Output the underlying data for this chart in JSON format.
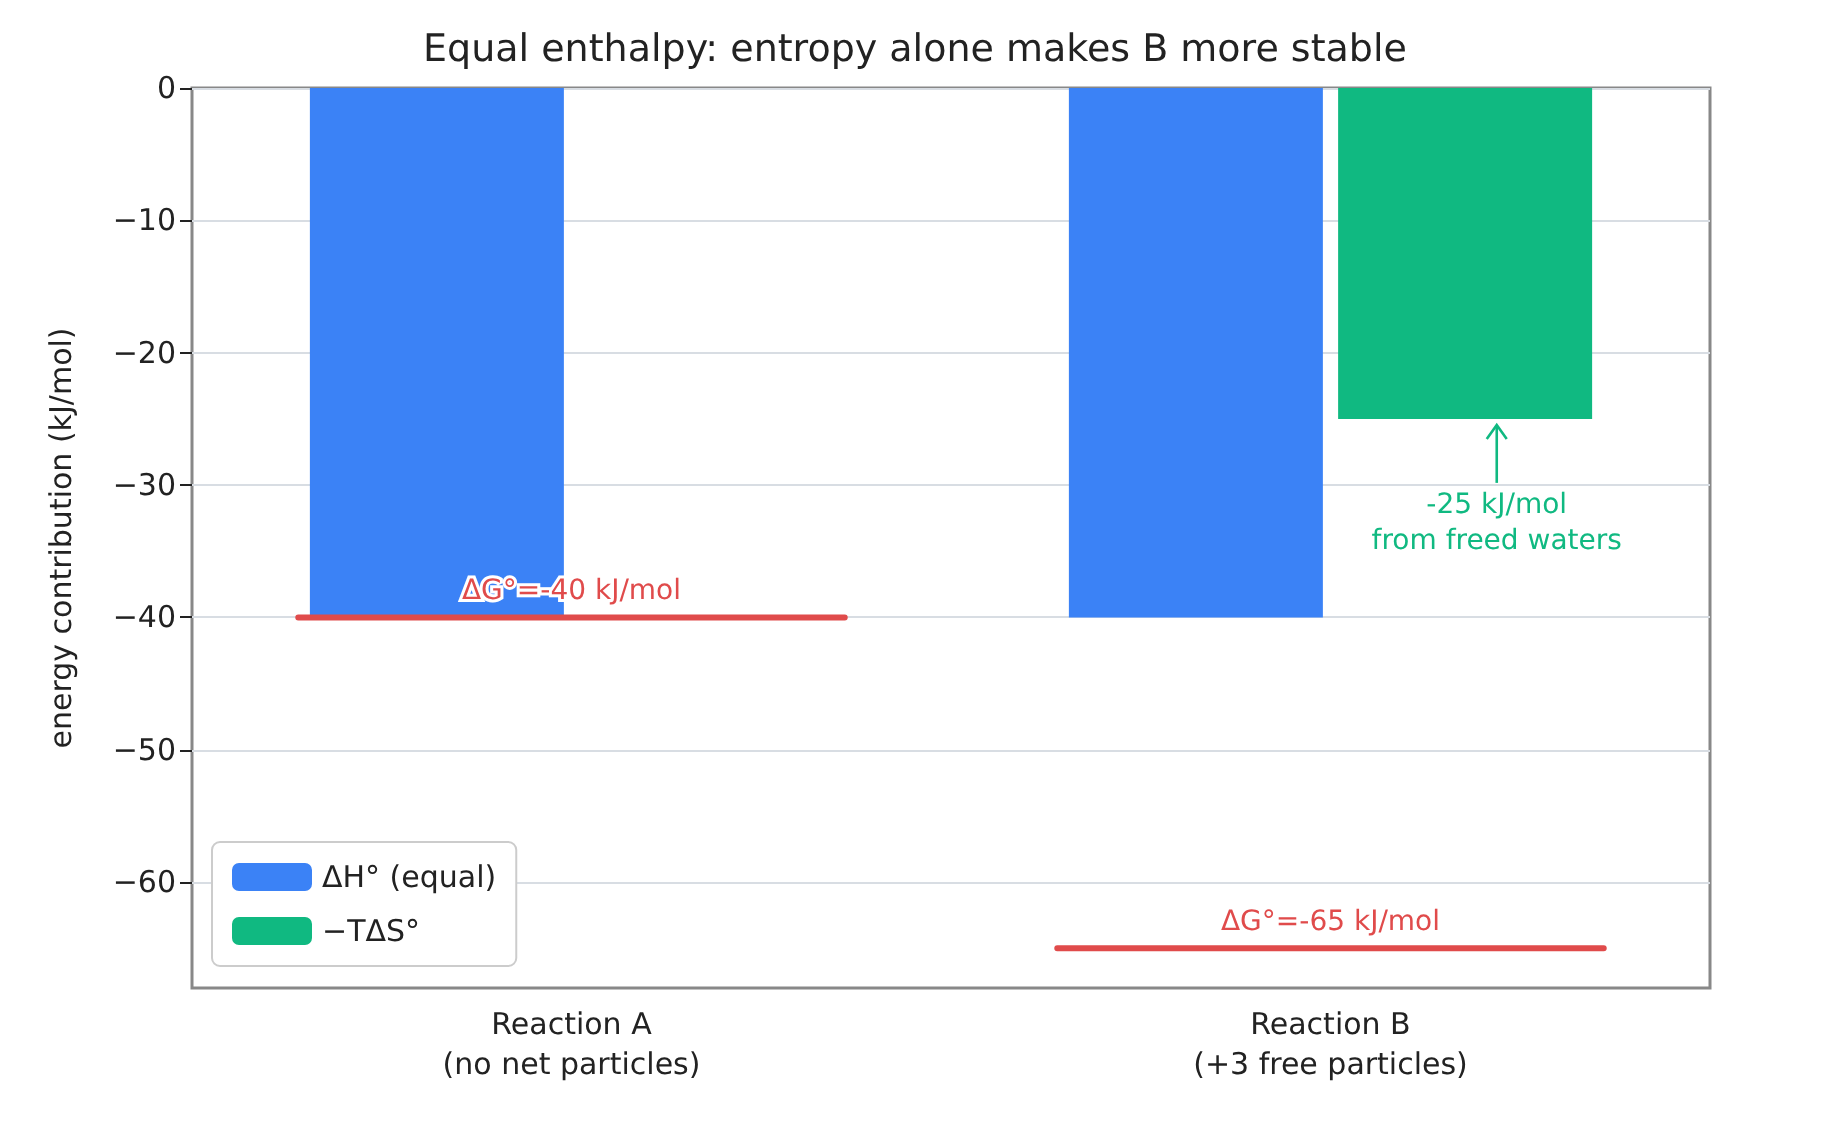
{
  "chart_data": {
    "type": "bar",
    "title": "Equal enthalpy: entropy alone makes B more stable",
    "ylabel": "energy contribution (kJ/mol)",
    "categories": [
      "Reaction A\n(no net particles)",
      "Reaction B\n(+3 free particles)"
    ],
    "series": [
      {
        "name": "ΔH° (equal)",
        "color": "#3b82f6",
        "values": [
          -40,
          -40
        ]
      },
      {
        "name": "−TΔS°",
        "color": "#10b981",
        "values": [
          0,
          -25
        ]
      }
    ],
    "ref_lines": [
      {
        "axis": "y",
        "value": -40,
        "label": "ΔG°=-40 kJ/mol",
        "color": "#e04b4b"
      },
      {
        "axis": "y",
        "value": -65,
        "label": "ΔG°=-65 kJ/mol",
        "color": "#e04b4b"
      }
    ],
    "annotations": [
      {
        "text": "-25 kJ/mol\nfrom freed waters",
        "x": "Reaction B\n(+3 free particles)",
        "y": -25
      }
    ],
    "ylim": [
      -68,
      0
    ],
    "yticks": [
      0,
      -10,
      -20,
      -30,
      -40,
      -50,
      -60
    ],
    "grid": "y",
    "legend": "bottom left"
  }
}
